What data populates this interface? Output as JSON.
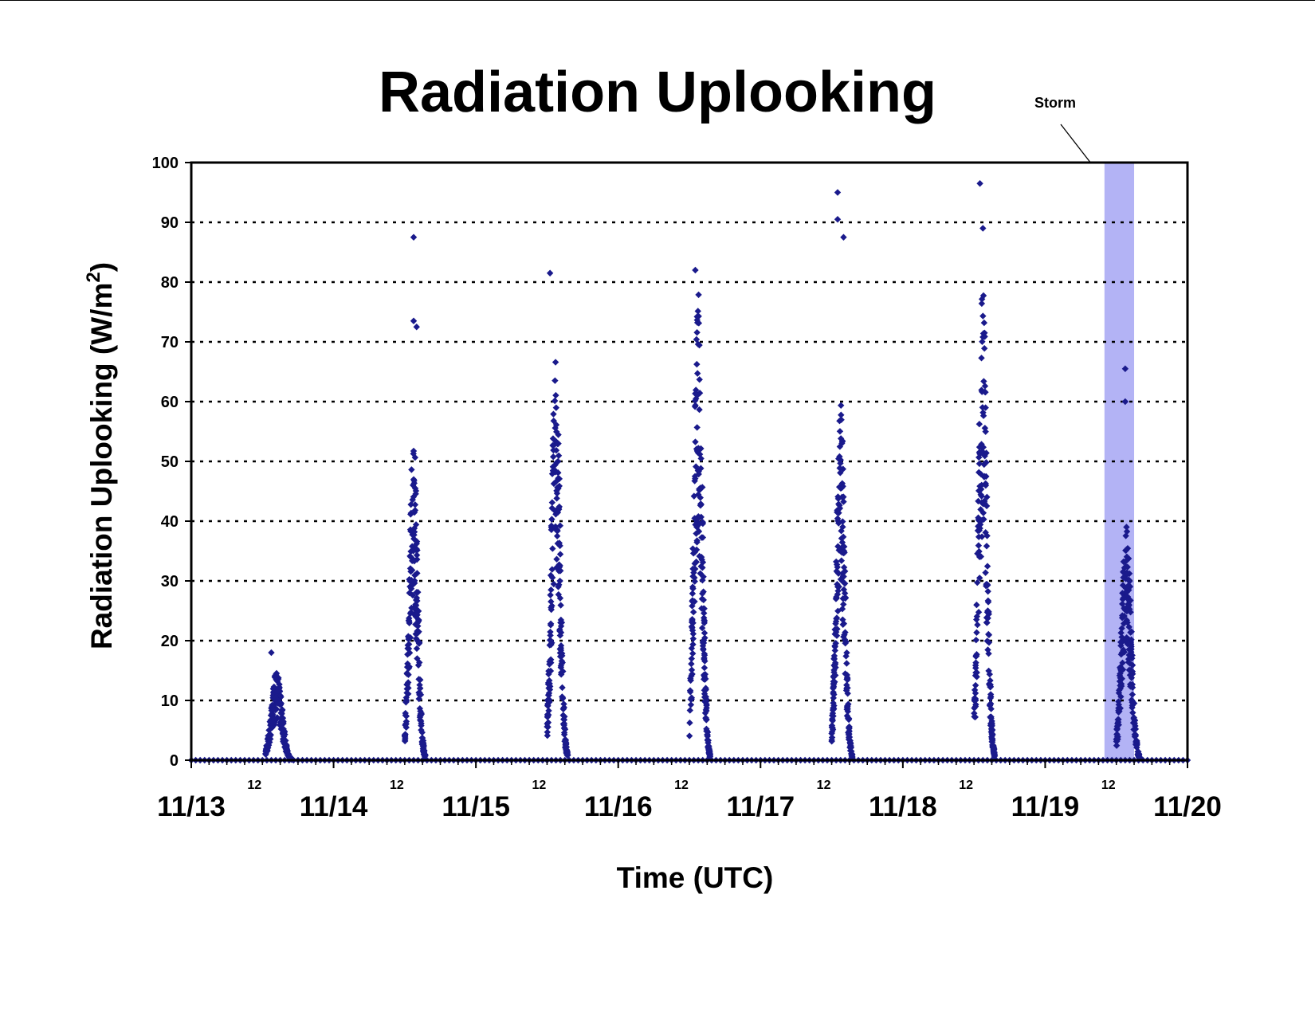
{
  "chart_data": {
    "type": "scatter",
    "title": "Radiation Uplooking",
    "xlabel": "Time (UTC)",
    "ylabel": "Radiation Uplooking (W/m",
    "ylabel_superscript": "2",
    "ylabel_close": ")",
    "ylim": [
      0,
      100
    ],
    "yticks": [
      0,
      10,
      20,
      30,
      40,
      50,
      60,
      70,
      80,
      90,
      100
    ],
    "xlim": [
      "11/13 00:00",
      "11/20 00:00"
    ],
    "x_date_labels": [
      "11/13",
      "11/14",
      "11/15",
      "11/16",
      "11/17",
      "11/18",
      "11/19",
      "11/20"
    ],
    "x_midday_label": "12",
    "grid": "horizontal dotted",
    "marker": "diamond",
    "marker_color": "#1a1a8c",
    "shade_color": "#b3b3f5",
    "annotation": {
      "text": "Storm",
      "x_start": "11/19 10:00",
      "x_end": "11/19 15:00"
    },
    "series": [
      {
        "peak_points": [
          {
            "x": "11/13 13:30",
            "y": 18
          },
          {
            "x": "11/14 13:30",
            "y": 87.5
          },
          {
            "x": "11/14 13:30",
            "y": 73.5
          },
          {
            "x": "11/14 14:00",
            "y": 72.5
          },
          {
            "x": "11/15 12:30",
            "y": 81.5
          },
          {
            "x": "11/16 13:00",
            "y": 82
          },
          {
            "x": "11/17 13:00",
            "y": 95
          },
          {
            "x": "11/17 13:00",
            "y": 90.5
          },
          {
            "x": "11/17 14:00",
            "y": 87.5
          },
          {
            "x": "11/18 13:00",
            "y": 96.5
          },
          {
            "x": "11/18 13:30",
            "y": 89
          },
          {
            "x": "11/19 13:30",
            "y": 65.5
          },
          {
            "x": "11/19 13:30",
            "y": 60
          }
        ],
        "daily_envelope": [
          {
            "day": "11/13",
            "start": "11/13 12:30",
            "end": "11/13 17:00",
            "typical_max": 15
          },
          {
            "day": "11/14",
            "start": "11/14 12:00",
            "end": "11/14 15:30",
            "typical_max": 55
          },
          {
            "day": "11/15",
            "start": "11/15 12:00",
            "end": "11/15 15:30",
            "typical_max": 70
          },
          {
            "day": "11/16",
            "start": "11/16 12:00",
            "end": "11/16 15:30",
            "typical_max": 80
          },
          {
            "day": "11/17",
            "start": "11/17 12:00",
            "end": "11/17 15:30",
            "typical_max": 60
          },
          {
            "day": "11/18",
            "start": "11/18 12:00",
            "end": "11/18 15:30",
            "typical_max": 80
          },
          {
            "day": "11/19",
            "start": "11/19 12:00",
            "end": "11/19 16:00",
            "typical_max": 40
          }
        ]
      }
    ]
  }
}
